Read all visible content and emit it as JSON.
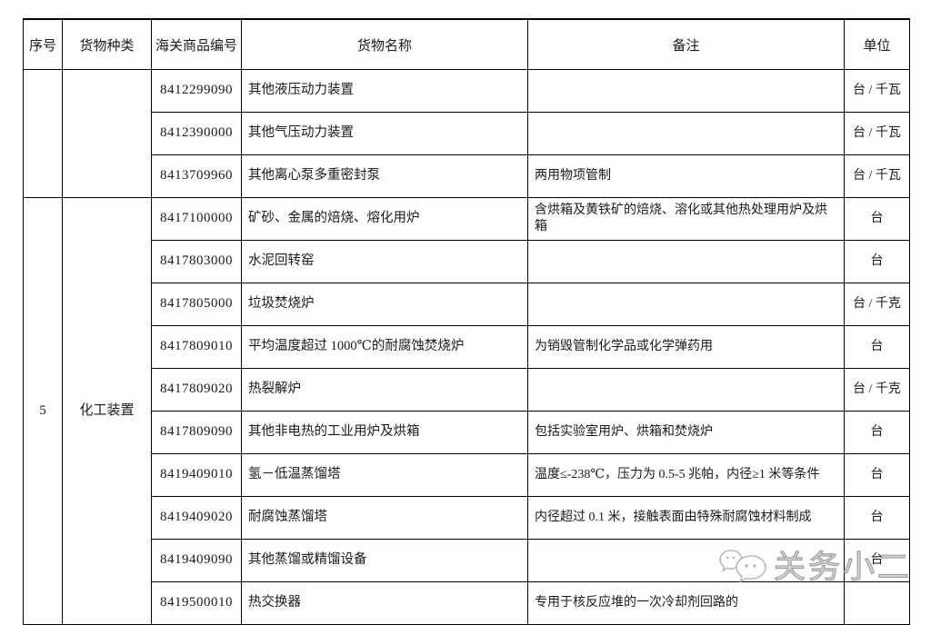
{
  "colors": {
    "border": "#000000",
    "text": "#1a1a1a",
    "watermark_gray": "#9f9f9f"
  },
  "table": {
    "headers": [
      "序号",
      "货物种类",
      "海关商品编号",
      "货物名称",
      "备注",
      "单位"
    ],
    "groups": [
      {
        "seq": "",
        "category": "",
        "rows": [
          {
            "code": "8412299090",
            "name": "其他液压动力装置",
            "remark": "",
            "unit": "台 / 千瓦"
          },
          {
            "code": "8412390000",
            "name": "其他气压动力装置",
            "remark": "",
            "unit": "台 / 千瓦"
          },
          {
            "code": "8413709960",
            "name": "其他离心泵多重密封泵",
            "remark": "两用物项管制",
            "unit": "台 / 千瓦"
          }
        ]
      },
      {
        "seq": "5",
        "category": "化工装置",
        "rows": [
          {
            "code": "8417100000",
            "name": "矿砂、金属的焙烧、熔化用炉",
            "remark": "含烘箱及黄铁矿的焙烧、溶化或其他热处理用炉及烘箱",
            "unit": "台"
          },
          {
            "code": "8417803000",
            "name": "水泥回转窑",
            "remark": "",
            "unit": "台"
          },
          {
            "code": "8417805000",
            "name": "垃圾焚烧炉",
            "remark": "",
            "unit": "台 / 千克"
          },
          {
            "code": "8417809010",
            "name": "平均温度超过 1000℃的耐腐蚀焚烧炉",
            "remark": "为销毁管制化学品或化学弹药用",
            "unit": "台"
          },
          {
            "code": "8417809020",
            "name": "热裂解炉",
            "remark": "",
            "unit": "台 / 千克"
          },
          {
            "code": "8417809090",
            "name": "其他非电热的工业用炉及烘箱",
            "remark": "包括实验室用炉、烘箱和焚烧炉",
            "unit": "台"
          },
          {
            "code": "8419409010",
            "name": "氢－低温蒸馏塔",
            "remark": "温度≤-238℃，压力为 0.5-5 兆帕，内径≥1 米等条件",
            "unit": "台"
          },
          {
            "code": "8419409020",
            "name": "耐腐蚀蒸馏塔",
            "remark": "内径超过 0.1 米，接触表面由特殊耐腐蚀材料制成",
            "unit": "台"
          },
          {
            "code": "8419409090",
            "name": "其他蒸馏或精馏设备",
            "remark": "",
            "unit": "台"
          },
          {
            "code": "8419500010",
            "name": "热交换器",
            "remark": "专用于核反应堆的一次冷却剂回路的",
            "unit": ""
          }
        ]
      }
    ]
  },
  "watermark": {
    "text": "关务小二",
    "icon": "chat-bubbles-logo"
  }
}
